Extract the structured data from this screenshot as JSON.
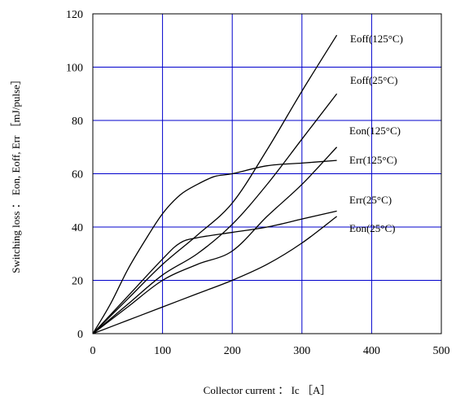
{
  "chart_data": {
    "type": "line",
    "title": "",
    "xlabel": "Collector current ： Ic ［A］",
    "ylabel": "Switching loss ： Eon, Eoff, Err ［mJ/pulse］",
    "xlim": [
      0,
      500
    ],
    "ylim": [
      0,
      120
    ],
    "x_ticks": [
      "0",
      "100",
      "200",
      "300",
      "400",
      "500"
    ],
    "y_ticks": [
      "0",
      "20",
      "40",
      "60",
      "80",
      "100",
      "120"
    ],
    "grid": true,
    "grid_color": "#0000cc",
    "line_color": "#000000",
    "series": [
      {
        "name": "Eoff(125°C)",
        "x": [
          0,
          50,
          100,
          150,
          200,
          250,
          300,
          350
        ],
        "y": [
          0,
          13,
          26,
          37,
          49,
          69,
          91,
          112
        ]
      },
      {
        "name": "Eoff(25°C)",
        "x": [
          0,
          50,
          100,
          150,
          200,
          250,
          300,
          350
        ],
        "y": [
          0,
          11,
          22,
          30,
          41,
          56,
          73,
          90
        ]
      },
      {
        "name": "Eon(125°C)",
        "x": [
          0,
          50,
          100,
          150,
          200,
          250,
          300,
          350
        ],
        "y": [
          0,
          10,
          20,
          26,
          31,
          44,
          56,
          70
        ]
      },
      {
        "name": "Err(125°C)",
        "x": [
          0,
          25,
          50,
          75,
          100,
          125,
          150,
          175,
          200,
          250,
          300,
          350
        ],
        "y": [
          0,
          11,
          24,
          35,
          45,
          52,
          56,
          59,
          60,
          63,
          64,
          65
        ]
      },
      {
        "name": "Err(25°C)",
        "x": [
          0,
          50,
          100,
          125,
          150,
          200,
          250,
          300,
          350
        ],
        "y": [
          0,
          14,
          28,
          34,
          36,
          38,
          40,
          43,
          46
        ]
      },
      {
        "name": "Eon(25°C)",
        "x": [
          0,
          50,
          100,
          150,
          200,
          250,
          300,
          350
        ],
        "y": [
          0,
          5,
          10,
          15,
          20,
          26,
          34,
          44
        ]
      }
    ]
  }
}
